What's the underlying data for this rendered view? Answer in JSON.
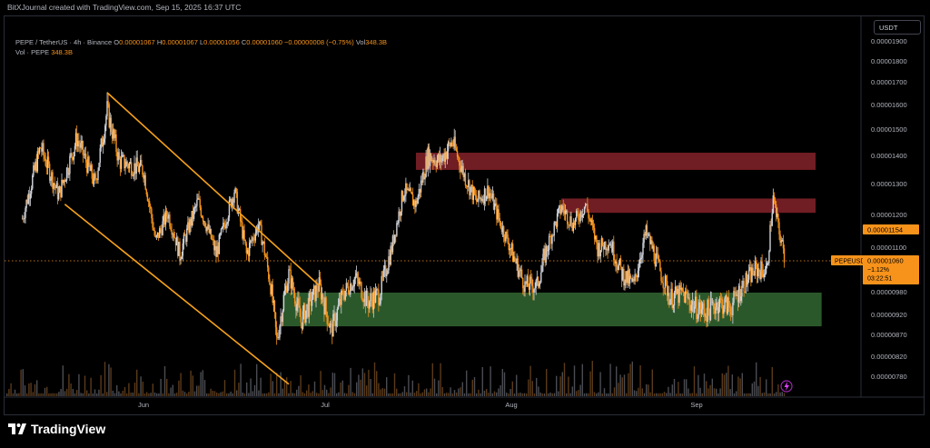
{
  "header": {
    "title": "BitXJournal created with TradingView.com, Sep 15, 2025 16:37 UTC"
  },
  "legend": {
    "symbol": "PEPE / TetherUS · 4h · Binance",
    "open_label": "O",
    "open": "0.00001067",
    "high_label": "H",
    "high": "0.00001067",
    "low_label": "L",
    "low": "0.00001056",
    "close_label": "C",
    "close": "0.00001060",
    "change": "−0.00000008 (−0.75%)",
    "vol_label": "Vol",
    "vol": "348.3B",
    "vol_series": "Vol · PEPE",
    "vol_series_value": "348.3B"
  },
  "currency": "USDT",
  "colors": {
    "up": "#d1d4dc",
    "down": "#f7931a",
    "channel": "#f7a21b",
    "resistance": "#7b1f27",
    "support": "#2f5f2f",
    "price_tag": "#f7931a",
    "axis_text": "#b2b5be"
  },
  "icons": {
    "logo": "tradingview-logo-icon",
    "alert": "lightning-icon"
  },
  "price_label": {
    "symbol": "PEPEUSDT",
    "price": "0.00001060",
    "change": "−1.12%",
    "countdown": "03:22:51"
  },
  "marker_price": "0.00001154",
  "footer": {
    "brand": "TradingView"
  },
  "chart_data": {
    "type": "candlestick",
    "title": "PEPE / TetherUS · 4h · Binance",
    "y_ticks": [
      "0.00001900",
      "0.00001800",
      "0.00001700",
      "0.00001600",
      "0.00001500",
      "0.00001400",
      "0.00001300",
      "0.00001200",
      "0.00001100",
      "0.00000980",
      "0.00000920",
      "0.00000870",
      "0.00000820",
      "0.00000780"
    ],
    "x_ticks": [
      "Jun",
      "Jul",
      "Aug",
      "Sep"
    ],
    "price_path": [
      {
        "d": "May 12",
        "p": 1.2e-05
      },
      {
        "d": "May 15",
        "p": 1.45e-05
      },
      {
        "d": "May 18",
        "p": 1.28e-05
      },
      {
        "d": "May 21",
        "p": 1.48e-05
      },
      {
        "d": "May 24",
        "p": 1.32e-05
      },
      {
        "d": "May 26",
        "p": 1.58e-05
      },
      {
        "d": "May 28",
        "p": 1.4e-05
      },
      {
        "d": "Jun 1",
        "p": 1.37e-05
      },
      {
        "d": "Jun 3",
        "p": 1.12e-05
      },
      {
        "d": "Jun 5",
        "p": 1.22e-05
      },
      {
        "d": "Jun 7",
        "p": 1.08e-05
      },
      {
        "d": "Jun 10",
        "p": 1.26e-05
      },
      {
        "d": "Jun 13",
        "p": 1.08e-05
      },
      {
        "d": "Jun 16",
        "p": 1.3e-05
      },
      {
        "d": "Jun 18",
        "p": 1.08e-05
      },
      {
        "d": "Jun 20",
        "p": 1.18e-05
      },
      {
        "d": "Jun 22",
        "p": 1e-05
      },
      {
        "d": "Jun 23",
        "p": 8.8e-06
      },
      {
        "d": "Jun 25",
        "p": 1.03e-05
      },
      {
        "d": "Jun 27",
        "p": 9.2e-06
      },
      {
        "d": "Jun 30",
        "p": 1e-05
      },
      {
        "d": "Jul 2",
        "p": 9e-06
      },
      {
        "d": "Jul 4",
        "p": 9.8e-06
      },
      {
        "d": "Jul 6",
        "p": 1.02e-05
      },
      {
        "d": "Jul 8",
        "p": 9.6e-06
      },
      {
        "d": "Jul 10",
        "p": 9.8e-06
      },
      {
        "d": "Jul 12",
        "p": 1.1e-05
      },
      {
        "d": "Jul 14",
        "p": 1.3e-05
      },
      {
        "d": "Jul 16",
        "p": 1.25e-05
      },
      {
        "d": "Jul 18",
        "p": 1.42e-05
      },
      {
        "d": "Jul 20",
        "p": 1.4e-05
      },
      {
        "d": "Jul 22",
        "p": 1.47e-05
      },
      {
        "d": "Jul 24",
        "p": 1.35e-05
      },
      {
        "d": "Jul 26",
        "p": 1.26e-05
      },
      {
        "d": "Jul 28",
        "p": 1.3e-05
      },
      {
        "d": "Jul 30",
        "p": 1.18e-05
      },
      {
        "d": "Aug 1",
        "p": 1.08e-05
      },
      {
        "d": "Aug 3",
        "p": 1e-05
      },
      {
        "d": "Aug 5",
        "p": 1e-05
      },
      {
        "d": "Aug 7",
        "p": 1.12e-05
      },
      {
        "d": "Aug 9",
        "p": 1.24e-05
      },
      {
        "d": "Aug 11",
        "p": 1.18e-05
      },
      {
        "d": "Aug 13",
        "p": 1.25e-05
      },
      {
        "d": "Aug 15",
        "p": 1.1e-05
      },
      {
        "d": "Aug 17",
        "p": 1.12e-05
      },
      {
        "d": "Aug 19",
        "p": 1.03e-05
      },
      {
        "d": "Aug 21",
        "p": 1e-05
      },
      {
        "d": "Aug 23",
        "p": 1.15e-05
      },
      {
        "d": "Aug 25",
        "p": 1.05e-05
      },
      {
        "d": "Aug 27",
        "p": 9.7e-06
      },
      {
        "d": "Aug 29",
        "p": 9.8e-06
      },
      {
        "d": "Aug 31",
        "p": 9.5e-06
      },
      {
        "d": "Sep 2",
        "p": 9.4e-06
      },
      {
        "d": "Sep 4",
        "p": 9.6e-06
      },
      {
        "d": "Sep 6",
        "p": 9.5e-06
      },
      {
        "d": "Sep 8",
        "p": 1e-05
      },
      {
        "d": "Sep 10",
        "p": 1.04e-05
      },
      {
        "d": "Sep 12",
        "p": 1.04e-05
      },
      {
        "d": "Sep 13",
        "p": 1.27e-05
      },
      {
        "d": "Sep 14",
        "p": 1.15e-05
      },
      {
        "d": "Sep 15",
        "p": 1.06e-05
      }
    ],
    "zones": [
      {
        "name": "resistance",
        "from": "Jul 16",
        "to": "Sep 20",
        "low": 1.37e-05,
        "high": 1.43e-05
      },
      {
        "name": "resistance",
        "from": "Aug 9",
        "to": "Sep 20",
        "low": 1.22e-05,
        "high": 1.27e-05
      },
      {
        "name": "support",
        "from": "Jun 24",
        "to": "Sep 21",
        "low": 9.1e-06,
        "high": 9.8e-06
      }
    ],
    "channel": [
      {
        "from": {
          "d": "May 26",
          "p": 1.64e-05
        },
        "to": {
          "d": "Jun 30",
          "p": 1e-05
        }
      },
      {
        "from": {
          "d": "May 19",
          "p": 1.25e-05
        },
        "to": {
          "d": "Jun 25",
          "p": 7.9e-06
        }
      }
    ]
  }
}
